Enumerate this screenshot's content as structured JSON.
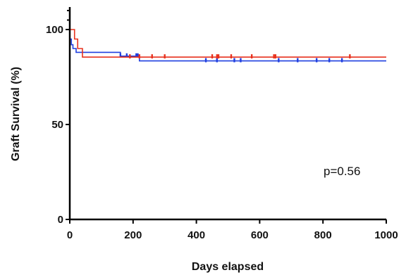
{
  "chart_data": {
    "type": "line",
    "title": "",
    "xlabel": "Days elapsed",
    "ylabel": "Graft Survival (%)",
    "xlim": [
      0,
      1000
    ],
    "ylim": [
      0,
      100
    ],
    "xticks": [
      0,
      200,
      400,
      600,
      800,
      1000
    ],
    "yticks": [
      0,
      50,
      100
    ],
    "xtick_labels": [
      "0",
      "200",
      "400",
      "600",
      "800",
      "1000"
    ],
    "ytick_labels": [
      "0",
      "50",
      "100"
    ],
    "grid": false,
    "annotation": "p=0.56",
    "series": [
      {
        "color": "#1f3fe0",
        "style": "step",
        "x": [
          0,
          5,
          10,
          20,
          30,
          160,
          220,
          1000
        ],
        "y": [
          95,
          92,
          90,
          88,
          88,
          86,
          83.5,
          83.5
        ],
        "censor_x": [
          160,
          180,
          210,
          215,
          430,
          465,
          520,
          540,
          660,
          720,
          780,
          820,
          860
        ],
        "censor_y": [
          86,
          86,
          86,
          86,
          83.5,
          83.5,
          83.5,
          83.5,
          83.5,
          83.5,
          83.5,
          83.5,
          83.5
        ]
      },
      {
        "color": "#e8321e",
        "style": "step",
        "x": [
          0,
          15,
          25,
          40,
          1000
        ],
        "y": [
          100,
          95,
          90,
          85.5,
          85.5
        ],
        "censor_x": [
          190,
          220,
          260,
          300,
          450,
          465,
          470,
          510,
          575,
          645,
          650,
          885
        ],
        "censor_y": [
          85.5,
          85.5,
          85.5,
          85.5,
          85.5,
          85.5,
          85.5,
          85.5,
          85.5,
          85.5,
          85.5,
          85.5
        ]
      }
    ]
  }
}
